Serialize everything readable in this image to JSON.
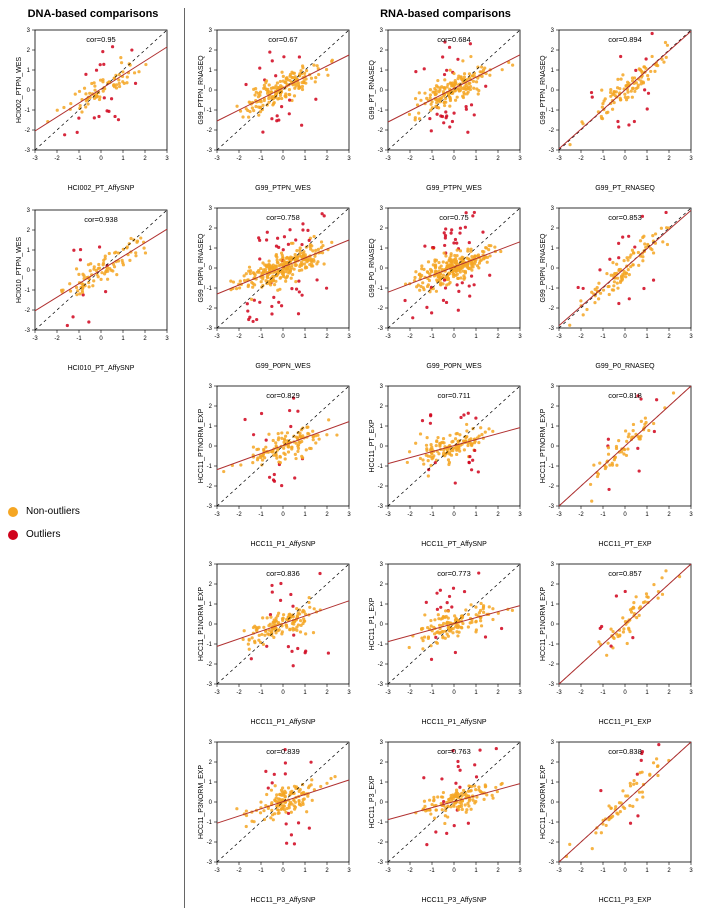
{
  "titles": {
    "left": "DNA-based comparisons",
    "right": "RNA-based comparisons"
  },
  "legend": {
    "non_outliers": {
      "label": "Non-outliers",
      "color": "#f5a623"
    },
    "outliers": {
      "label": "Outliers",
      "color": "#d0021b"
    }
  },
  "axis": {
    "min": -3,
    "max": 3,
    "ticks": [
      -3,
      -2,
      -1,
      0,
      1,
      2,
      3
    ]
  },
  "colors": {
    "point_outlier": "#d0021b",
    "point_nonoutlier": "#f5a623",
    "box": "#000000",
    "diag": "#000000",
    "fit": "#b03030",
    "bg": "#ffffff"
  },
  "plots_left": [
    {
      "cor": "cor=0.95",
      "xlabel": "HCI002_PT_AffySNP",
      "ylabel": "HCI002_PTPN_WES",
      "n": 90,
      "fit_slope": 0.7,
      "fit_intercept": 0.05,
      "seed": 11
    },
    {
      "cor": "cor=0.938",
      "xlabel": "HCI010_PT_AffySNP",
      "ylabel": "HCI010_PTPN_WES",
      "n": 100,
      "fit_slope": 0.68,
      "fit_intercept": 0.0,
      "seed": 12
    }
  ],
  "plots_right": [
    {
      "cor": "cor=0.67",
      "xlabel": "G99_PTPN_WES",
      "ylabel": "G99_PTPN_RNASEQ",
      "n": 200,
      "fit_slope": 0.55,
      "fit_intercept": 0.1,
      "seed": 21
    },
    {
      "cor": "cor=0.684",
      "xlabel": "G99_PTPN_WES",
      "ylabel": "G99_PT_RNASEQ",
      "n": 200,
      "fit_slope": 0.56,
      "fit_intercept": 0.08,
      "seed": 22
    },
    {
      "cor": "cor=0.894",
      "xlabel": "G99_PT_RNASEQ",
      "ylabel": "G99_PTPN_RNASEQ",
      "n": 110,
      "fit_slope": 0.98,
      "fit_intercept": 0.0,
      "seed": 23
    },
    {
      "cor": "cor=0.758",
      "xlabel": "G99_P0PN_WES",
      "ylabel": "G99_P0PN_RNASEQ",
      "n": 320,
      "fit_slope": 0.45,
      "fit_intercept": 0.05,
      "seed": 24
    },
    {
      "cor": "cor=0.75",
      "xlabel": "G99_P0PN_WES",
      "ylabel": "G99_P0_RNASEQ",
      "n": 320,
      "fit_slope": 0.42,
      "fit_intercept": 0.05,
      "seed": 25
    },
    {
      "cor": "cor=0.853",
      "xlabel": "G99_P0_RNASEQ",
      "ylabel": "G99_P0PN_RNASEQ",
      "n": 110,
      "fit_slope": 0.96,
      "fit_intercept": 0.0,
      "seed": 26
    },
    {
      "cor": "cor=0.829",
      "xlabel": "HCC11_P1_AffySNP",
      "ylabel": "HCC11_PTNORM_EXP",
      "n": 140,
      "fit_slope": 0.4,
      "fit_intercept": 0.02,
      "seed": 27
    },
    {
      "cor": "cor=0.711",
      "xlabel": "HCC11_PT_AffySNP",
      "ylabel": "HCC11_PT_EXP",
      "n": 150,
      "fit_slope": 0.3,
      "fit_intercept": 0.02,
      "seed": 28
    },
    {
      "cor": "cor=0.818",
      "xlabel": "HCC11_PT_EXP",
      "ylabel": "HCC11_PTNORM_EXP",
      "n": 70,
      "fit_slope": 1.05,
      "fit_intercept": 0.0,
      "seed": 29
    },
    {
      "cor": "cor=0.836",
      "xlabel": "HCC11_P1_AffySNP",
      "ylabel": "HCC11_P1NORM_EXP",
      "n": 150,
      "fit_slope": 0.38,
      "fit_intercept": 0.02,
      "seed": 30
    },
    {
      "cor": "cor=0.773",
      "xlabel": "HCC11_P1_AffySNP",
      "ylabel": "HCC11_P1_EXP",
      "n": 150,
      "fit_slope": 0.3,
      "fit_intercept": 0.02,
      "seed": 31
    },
    {
      "cor": "cor=0.857",
      "xlabel": "HCC11_P1_EXP",
      "ylabel": "HCC11_P1NORM_EXP",
      "n": 60,
      "fit_slope": 1.2,
      "fit_intercept": 0.0,
      "seed": 32
    },
    {
      "cor": "cor=0.839",
      "xlabel": "HCC11_P3_AffySNP",
      "ylabel": "HCC11_P3NORM_EXP",
      "n": 150,
      "fit_slope": 0.36,
      "fit_intercept": 0.02,
      "seed": 33
    },
    {
      "cor": "cor=0.763",
      "xlabel": "HCC11_P3_AffySNP",
      "ylabel": "HCC11_P3_EXP",
      "n": 150,
      "fit_slope": 0.3,
      "fit_intercept": 0.02,
      "seed": 34
    },
    {
      "cor": "cor=0.838",
      "xlabel": "HCC11_P3_EXP",
      "ylabel": "HCC11_P3NORM_EXP",
      "n": 60,
      "fit_slope": 1.1,
      "fit_intercept": 0.0,
      "seed": 35
    }
  ]
}
